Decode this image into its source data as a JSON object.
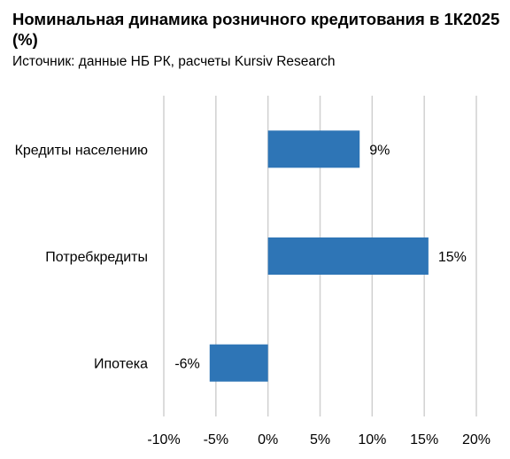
{
  "chart_data": {
    "type": "bar",
    "orientation": "horizontal",
    "title": "Номинальная динамика розничного кредитования в 1К2025 (%)",
    "subtitle": "Источник: данные НБ РК, расчеты Kursiv Research",
    "categories": [
      "Кредиты населению",
      "Потребкредиты",
      "Ипотека"
    ],
    "values": [
      8.8,
      15.4,
      -5.6
    ],
    "data_labels": [
      "9%",
      "15%",
      "-6%"
    ],
    "xlim": [
      -10,
      20
    ],
    "x_ticks": [
      -10,
      -5,
      0,
      5,
      10,
      15,
      20
    ],
    "x_tick_labels": [
      "-10%",
      "-5%",
      "0%",
      "5%",
      "10%",
      "15%",
      "20%"
    ],
    "grid": true,
    "legend": "none",
    "colors": {
      "bar": "#2e75b6",
      "grid": "#d0d0d0"
    }
  }
}
